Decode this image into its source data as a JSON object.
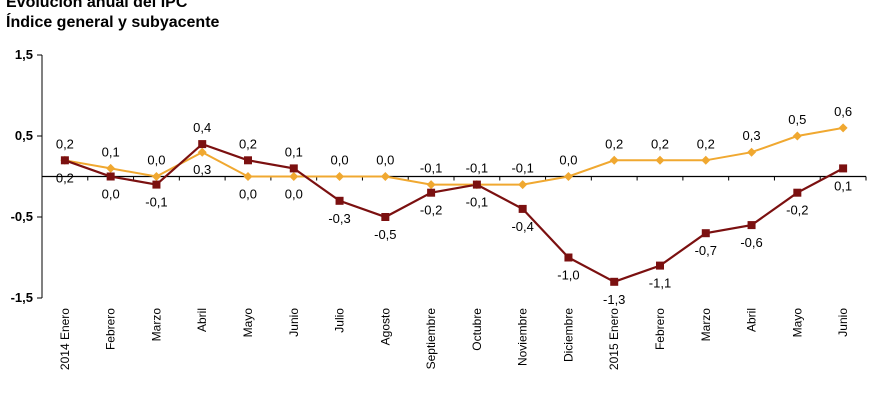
{
  "header": {
    "title": "Evolución anual del IPC",
    "subtitle": "Índice general y subyacente"
  },
  "colors": {
    "general": "#7b1010",
    "subyacente": "#f0a830",
    "axis": "#000000",
    "grid": "#cfcfcf"
  },
  "chart_data": {
    "type": "line",
    "title": "Evolución anual del IPC",
    "subtitle": "Índice general y subyacente",
    "xlabel": "",
    "ylabel": "",
    "ylim": [
      -1.5,
      1.5
    ],
    "y_ticks": [
      "1,5",
      "0,5",
      "-0,5",
      "-1,5"
    ],
    "grid": false,
    "legend": "none visible",
    "categories": [
      "2014 Enero",
      "Febrero",
      "Marzo",
      "Abril",
      "Mayo",
      "Junio",
      "Julio",
      "Agosto",
      "Septiembre",
      "Octubre",
      "Noviembre",
      "Diciembre",
      "2015 Enero",
      "Febrero",
      "Marzo",
      "Abril",
      "Mayo",
      "Junio"
    ],
    "series": [
      {
        "key": "general",
        "marker": "square",
        "values": [
          0.2,
          0.0,
          -0.1,
          0.4,
          0.2,
          0.1,
          -0.3,
          -0.5,
          -0.2,
          -0.1,
          -0.4,
          -1.0,
          -1.3,
          -1.1,
          -0.7,
          -0.6,
          -0.2,
          0.1
        ],
        "labels": [
          "0,2",
          "0,0",
          "-0,1",
          "0,4",
          "0,2",
          "0,1",
          "-0,3",
          "-0,5",
          "-0,2",
          "-0,1",
          "-0,4",
          "-1,0",
          "-1,3",
          "-1,1",
          "-0,7",
          "-0,6",
          "-0,2",
          "0,1"
        ]
      },
      {
        "key": "subyacente",
        "marker": "diamond",
        "values": [
          0.2,
          0.1,
          0.0,
          0.3,
          0.0,
          0.0,
          0.0,
          0.0,
          -0.1,
          -0.1,
          -0.1,
          0.0,
          0.2,
          0.2,
          0.2,
          0.3,
          0.5,
          0.6
        ],
        "labels": [
          "0,2",
          "0,1",
          "0,0",
          "0,3",
          "0,0",
          "0,0",
          "0,0",
          "0,0",
          "-0,1",
          "-0,1",
          "-0,1",
          "0,0",
          "0,2",
          "0,2",
          "0,2",
          "0,3",
          "0,5",
          "0,6"
        ]
      }
    ]
  }
}
